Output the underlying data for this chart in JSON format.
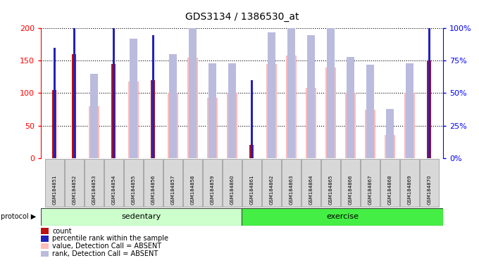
{
  "title": "GDS3134 / 1386530_at",
  "samples": [
    "GSM184851",
    "GSM184852",
    "GSM184853",
    "GSM184854",
    "GSM184855",
    "GSM184856",
    "GSM184857",
    "GSM184858",
    "GSM184859",
    "GSM184860",
    "GSM184861",
    "GSM184862",
    "GSM184863",
    "GSM184864",
    "GSM184865",
    "GSM184866",
    "GSM184867",
    "GSM184868",
    "GSM184869",
    "GSM184870"
  ],
  "count": [
    105,
    160,
    0,
    145,
    0,
    120,
    0,
    0,
    0,
    0,
    20,
    0,
    0,
    0,
    0,
    0,
    0,
    0,
    0,
    150
  ],
  "percentile_rank": [
    85,
    102,
    0,
    102,
    0,
    95,
    0,
    0,
    0,
    0,
    60,
    0,
    0,
    0,
    0,
    0,
    0,
    0,
    0,
    100
  ],
  "value_absent": [
    0,
    0,
    80,
    0,
    118,
    0,
    100,
    155,
    93,
    100,
    0,
    145,
    158,
    108,
    140,
    100,
    75,
    35,
    100,
    0
  ],
  "rank_absent": [
    0,
    0,
    65,
    0,
    92,
    0,
    80,
    103,
    73,
    73,
    0,
    97,
    103,
    95,
    103,
    78,
    72,
    38,
    73,
    0
  ],
  "sedentary_count": 10,
  "exercise_count": 10,
  "ylim_left": [
    0,
    200
  ],
  "ylim_right": [
    0,
    100
  ],
  "yticks_left": [
    0,
    50,
    100,
    150,
    200
  ],
  "yticks_right": [
    0,
    25,
    50,
    75,
    100
  ],
  "ytick_labels_right": [
    "0%",
    "25%",
    "50%",
    "75%",
    "100%"
  ],
  "color_count": "#bb1111",
  "color_rank": "#2222bb",
  "color_value_absent": "#ffbbbb",
  "color_rank_absent": "#bbbbdd",
  "color_sedentary_bg": "#ccffcc",
  "color_exercise_bg": "#44ee44",
  "protocol_label": "protocol",
  "sedentary_label": "sedentary",
  "exercise_label": "exercise",
  "legend_items": [
    {
      "label": "count",
      "color": "#bb1111"
    },
    {
      "label": "percentile rank within the sample",
      "color": "#2222bb"
    },
    {
      "label": "value, Detection Call = ABSENT",
      "color": "#ffbbbb"
    },
    {
      "label": "rank, Detection Call = ABSENT",
      "color": "#bbbbdd"
    }
  ]
}
